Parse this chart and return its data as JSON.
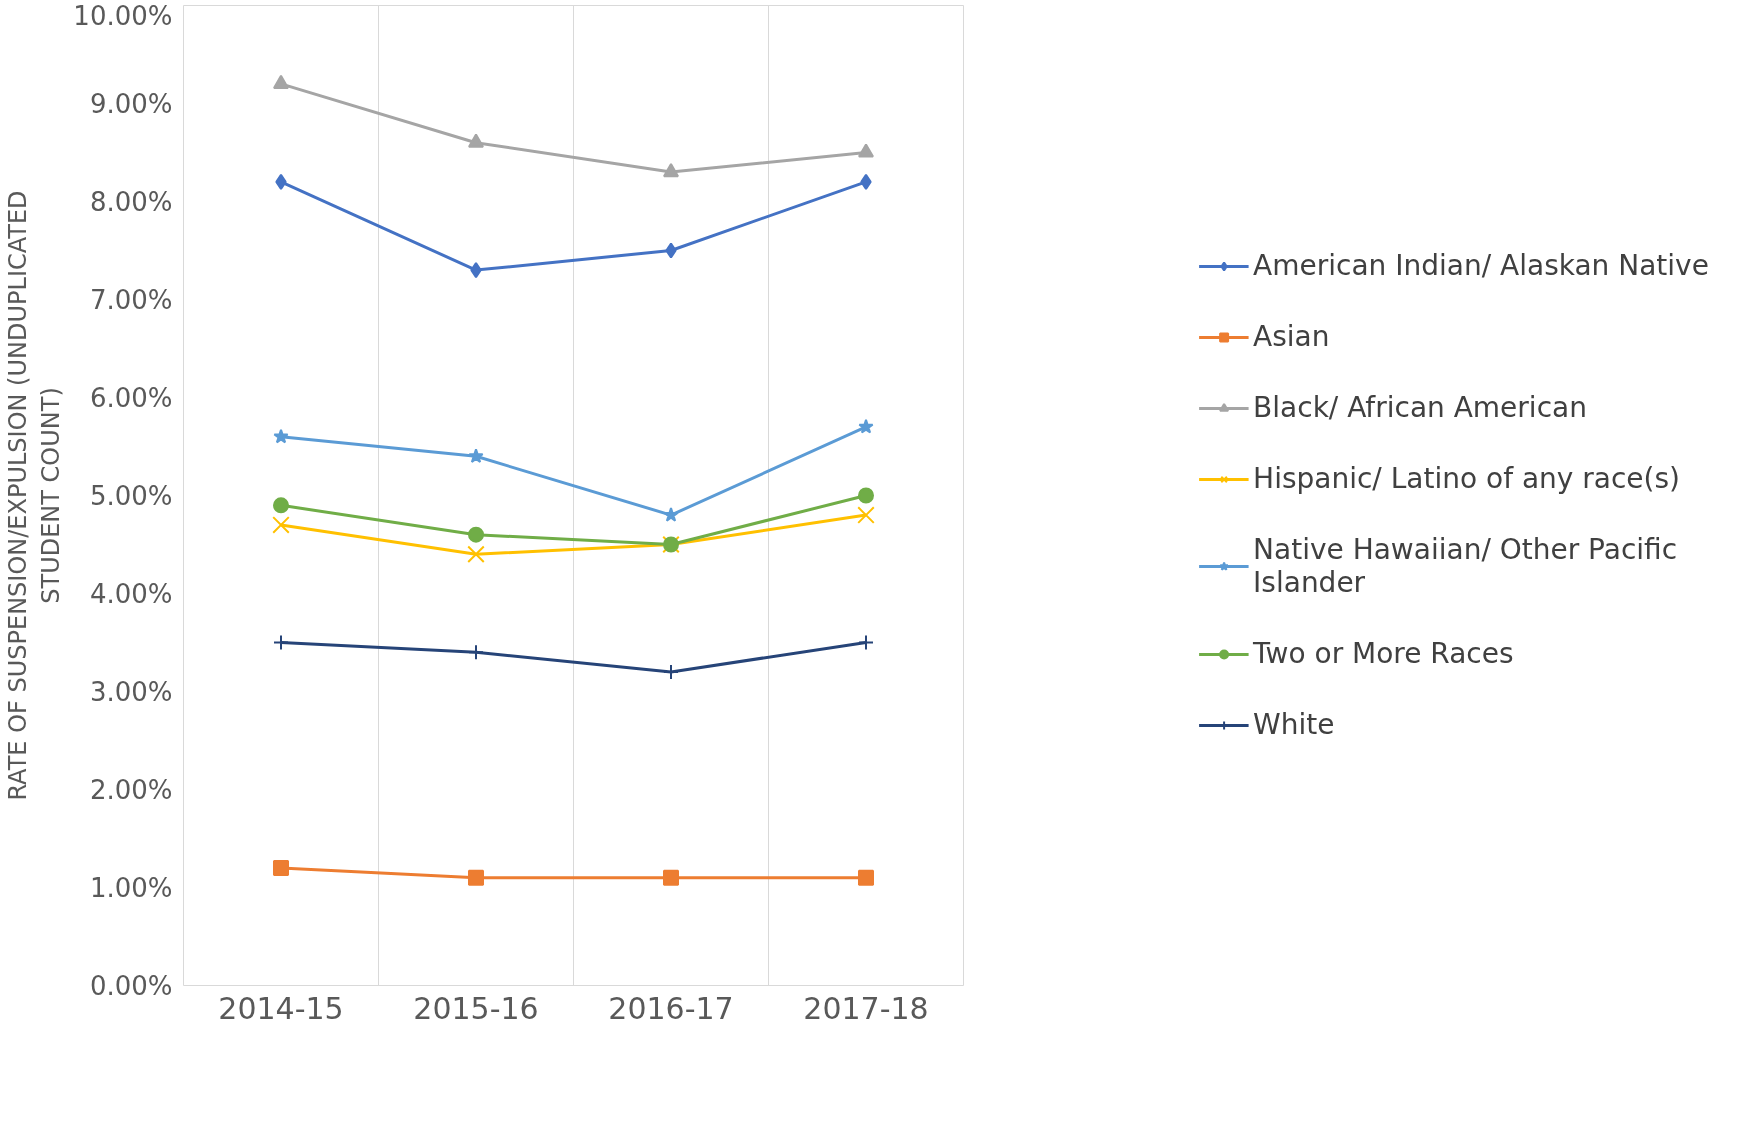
{
  "chart_data": {
    "type": "line",
    "ylabel": "RATE OF SUSPENSION/EXPULSION (UNDUPLICATED STUDENT COUNT)",
    "categories": [
      "2014-15",
      "2015-16",
      "2016-17",
      "2017-18"
    ],
    "ylim": [
      0,
      10
    ],
    "yticks": [
      {
        "value": 0,
        "label": "0.00%"
      },
      {
        "value": 1,
        "label": "1.00%"
      },
      {
        "value": 2,
        "label": "2.00%"
      },
      {
        "value": 3,
        "label": "3.00%"
      },
      {
        "value": 4,
        "label": "4.00%"
      },
      {
        "value": 5,
        "label": "5.00%"
      },
      {
        "value": 6,
        "label": "6.00%"
      },
      {
        "value": 7,
        "label": "7.00%"
      },
      {
        "value": 8,
        "label": "8.00%"
      },
      {
        "value": 9,
        "label": "9.00%"
      },
      {
        "value": 10,
        "label": "10.00%"
      }
    ],
    "grid": "x",
    "legend": "right",
    "line_style": "solid",
    "series": [
      {
        "name": "American Indian/ Alaskan Native",
        "color": "#4472c4",
        "marker": "diamond",
        "values": [
          8.2,
          7.3,
          7.5,
          8.2
        ]
      },
      {
        "name": "Asian",
        "color": "#ed7d31",
        "marker": "square",
        "values": [
          1.2,
          1.1,
          1.1,
          1.1
        ]
      },
      {
        "name": "Black/ African American",
        "color": "#a5a5a5",
        "marker": "triangle",
        "values": [
          9.2,
          8.6,
          8.3,
          8.5
        ]
      },
      {
        "name": "Hispanic/ Latino of any race(s)",
        "color": "#ffc000",
        "marker": "x",
        "values": [
          4.7,
          4.4,
          4.5,
          4.8
        ]
      },
      {
        "name": "Native Hawaiian/ Other Pacific Islander",
        "color": "#5b9bd5",
        "marker": "star",
        "values": [
          5.6,
          5.4,
          4.8,
          5.7
        ]
      },
      {
        "name": "Two or More Races",
        "color": "#70ad47",
        "marker": "circle",
        "values": [
          4.9,
          4.6,
          4.5,
          5.0
        ]
      },
      {
        "name": "White",
        "color": "#264478",
        "marker": "cross",
        "values": [
          3.5,
          3.4,
          3.2,
          3.5
        ]
      }
    ]
  }
}
